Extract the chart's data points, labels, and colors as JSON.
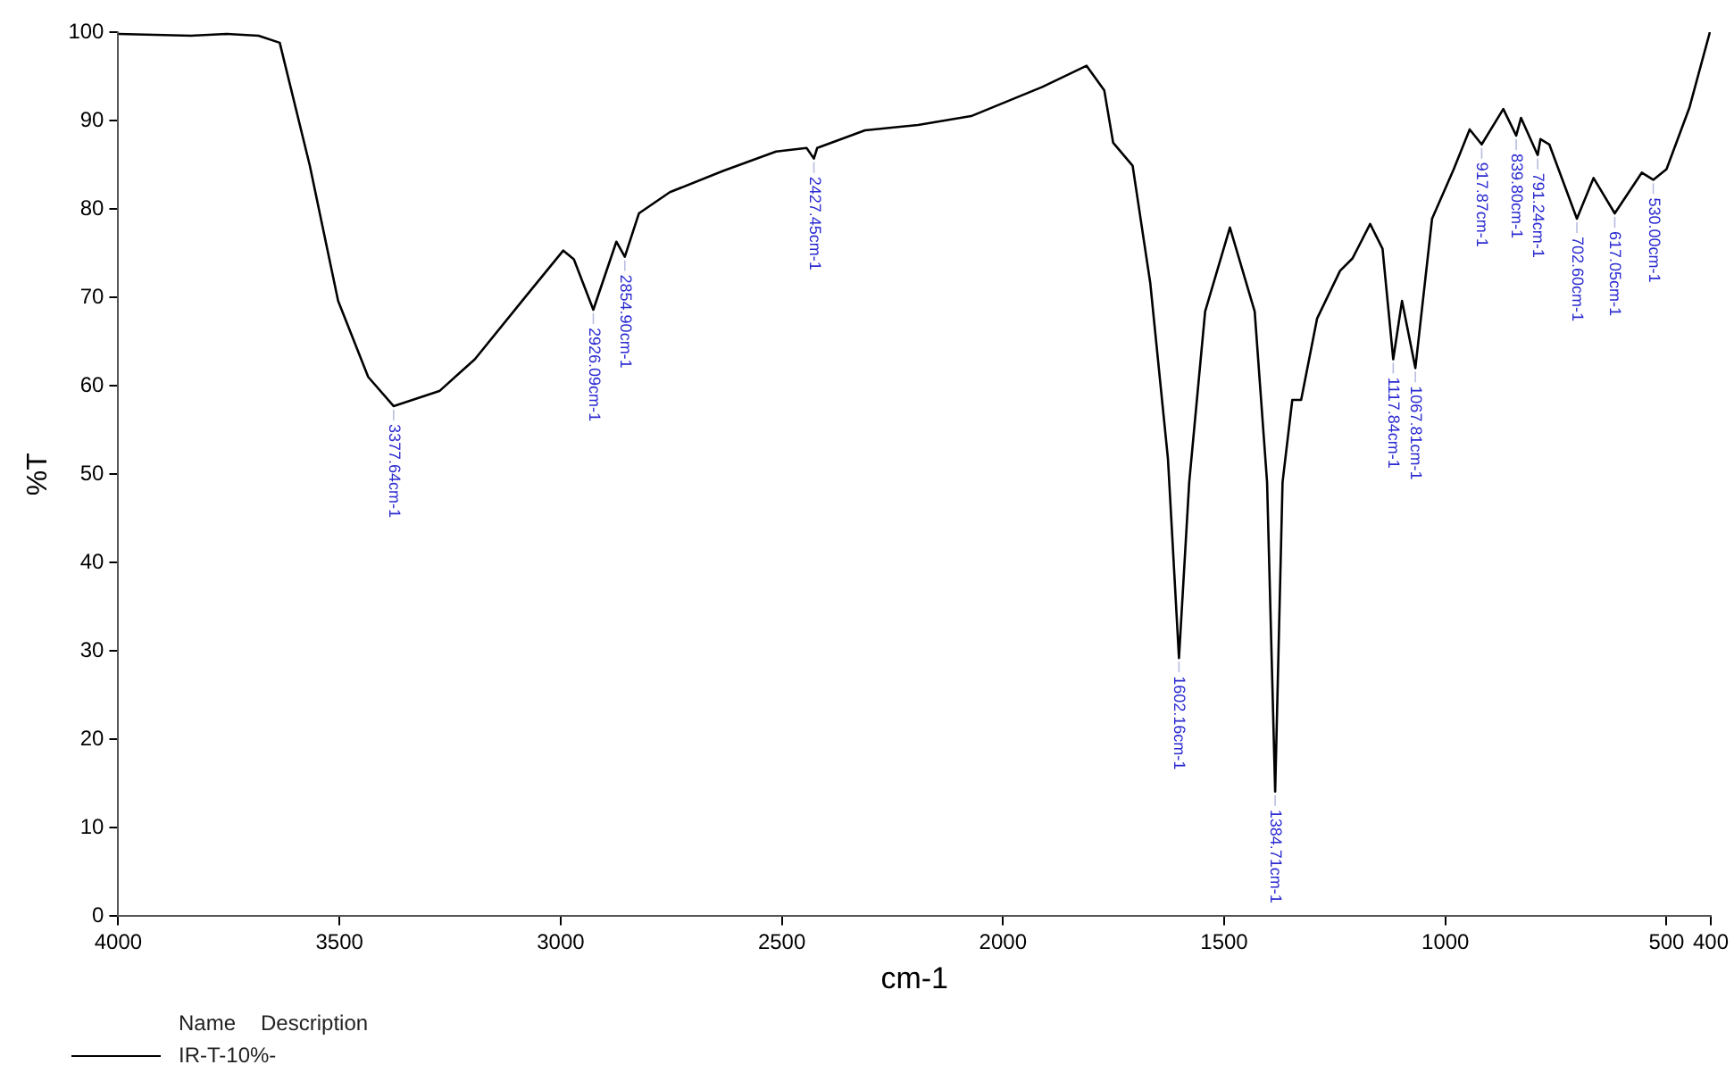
{
  "chart_data": {
    "type": "line",
    "xlabel": "cm-1",
    "ylabel": "%T",
    "legend_title": "Name",
    "legend": "bottom left",
    "grid": false,
    "marker": "none",
    "line_style": "solid",
    "xlim": [
      4000,
      400
    ],
    "xticks": [
      4000,
      3500,
      3000,
      2500,
      2000,
      1500,
      1000,
      500,
      400
    ],
    "ylim": [
      0,
      100
    ],
    "yticks": [
      0,
      10,
      20,
      30,
      40,
      50,
      60,
      70,
      80,
      90,
      100
    ],
    "series": [
      {
        "name": "IR-T-10%-",
        "color": "#000000",
        "x": [
          4000,
          3836,
          3755,
          3683,
          3635,
          3567,
          3503,
          3435,
          3377.64,
          3274,
          3194,
          3074,
          2994,
          2970,
          2926.09,
          2874,
          2854.9,
          2823,
          2753,
          2633,
          2513,
          2444,
          2427.45,
          2420,
          2312,
          2192,
          2072,
          1911,
          1811,
          1771,
          1751,
          1707,
          1667,
          1627,
          1602.16,
          1579,
          1543,
          1487,
          1431,
          1403,
          1384.71,
          1368,
          1346,
          1326,
          1290,
          1238,
          1210,
          1170,
          1142,
          1117.84,
          1098,
          1067.81,
          1030,
          981,
          945,
          917.87,
          869,
          839.8,
          829,
          791.24,
          785,
          765,
          702.6,
          665,
          617.05,
          556,
          530,
          500,
          448,
          402
        ],
        "values": [
          99.8,
          99.6,
          99.8,
          99.6,
          98.8,
          84.9,
          69.6,
          61,
          57.7,
          59.4,
          63,
          70.4,
          75.3,
          74.3,
          68.6,
          76.3,
          74.6,
          79.5,
          81.9,
          84.3,
          86.5,
          86.9,
          85.7,
          86.9,
          88.9,
          89.5,
          90.5,
          93.8,
          96.2,
          93.4,
          87.5,
          84.9,
          71.6,
          51.7,
          29.2,
          49.1,
          68.4,
          77.9,
          68.4,
          49.1,
          14.1,
          49.1,
          58.4,
          58.4,
          67.6,
          73,
          74.4,
          78.3,
          75.5,
          63,
          69.6,
          62,
          78.9,
          84.5,
          89,
          87.3,
          91.3,
          88.3,
          90.3,
          86.1,
          87.9,
          87.3,
          78.9,
          83.5,
          79.5,
          84.1,
          83.3,
          84.5,
          91.5,
          100
        ]
      }
    ],
    "annotations": [
      {
        "text": "3377.64cm-1",
        "x": 3377.64,
        "y": 57.7
      },
      {
        "text": "2926.09cm-1",
        "x": 2926.09,
        "y": 68.6
      },
      {
        "text": "2854.90cm-1",
        "x": 2854.9,
        "y": 74.6
      },
      {
        "text": "2427.45cm-1",
        "x": 2427.45,
        "y": 85.7
      },
      {
        "text": "1602.16cm-1",
        "x": 1602.16,
        "y": 29.2
      },
      {
        "text": "1384.71cm-1",
        "x": 1384.71,
        "y": 14.1
      },
      {
        "text": "1117.84cm-1",
        "x": 1117.84,
        "y": 63
      },
      {
        "text": "1067.81cm-1",
        "x": 1067.81,
        "y": 62
      },
      {
        "text": "917.87cm-1",
        "x": 917.87,
        "y": 87.3
      },
      {
        "text": "839.80cm-1",
        "x": 839.8,
        "y": 88.3
      },
      {
        "text": "791.24cm-1",
        "x": 791.24,
        "y": 86.1
      },
      {
        "text": "702.60cm-1",
        "x": 702.6,
        "y": 78.9
      },
      {
        "text": "617.05cm-1",
        "x": 617.05,
        "y": 79.5
      },
      {
        "text": "530.00cm-1",
        "x": 530,
        "y": 83.3
      },
      "Description"
    ]
  }
}
